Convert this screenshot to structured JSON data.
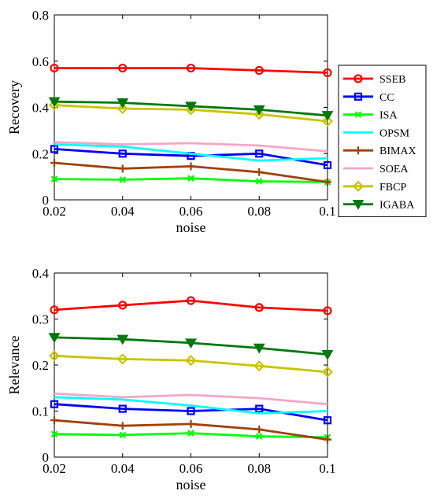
{
  "series_styles": [
    {
      "name": "SSEB",
      "color": "#ff0000",
      "marker": "circle"
    },
    {
      "name": "CC",
      "color": "#0000ff",
      "marker": "square"
    },
    {
      "name": "ISA",
      "color": "#00ff00",
      "marker": "x"
    },
    {
      "name": "OPSM",
      "color": "#00ffff",
      "marker": "none"
    },
    {
      "name": "BIMAX",
      "color": "#a0400a",
      "marker": "plus"
    },
    {
      "name": "SOEA",
      "color": "#f4a6c8",
      "marker": "none"
    },
    {
      "name": "FBCP",
      "color": "#c8c400",
      "marker": "diamond"
    },
    {
      "name": "IGABA",
      "color": "#00780a",
      "marker": "triangle-down"
    }
  ],
  "chart_data": [
    {
      "type": "line",
      "xlabel": "noise",
      "ylabel": "Recovery",
      "x": [
        0.02,
        0.04,
        0.06,
        0.08,
        0.1
      ],
      "x_tick_labels": [
        "0.02",
        "0.04",
        "0.06",
        "0.08",
        "0.1"
      ],
      "ylim": [
        0,
        0.8
      ],
      "y_ticks": [
        0,
        0.2,
        0.4,
        0.6,
        0.8
      ],
      "y_tick_labels": [
        "0",
        "0.2",
        "0.4",
        "0.6",
        "0.8"
      ],
      "legend_position": "right",
      "grid": false,
      "series": [
        {
          "name": "SSEB",
          "values": [
            0.57,
            0.57,
            0.57,
            0.56,
            0.55
          ]
        },
        {
          "name": "CC",
          "values": [
            0.22,
            0.2,
            0.19,
            0.2,
            0.15
          ]
        },
        {
          "name": "ISA",
          "values": [
            0.09,
            0.087,
            0.093,
            0.08,
            0.077
          ]
        },
        {
          "name": "OPSM",
          "values": [
            0.24,
            0.23,
            0.2,
            0.17,
            0.18
          ]
        },
        {
          "name": "BIMAX",
          "values": [
            0.16,
            0.135,
            0.145,
            0.12,
            0.077
          ]
        },
        {
          "name": "SOEA",
          "values": [
            0.25,
            0.24,
            0.245,
            0.235,
            0.21
          ]
        },
        {
          "name": "FBCP",
          "values": [
            0.41,
            0.395,
            0.39,
            0.37,
            0.34
          ]
        },
        {
          "name": "IGABA",
          "values": [
            0.425,
            0.42,
            0.405,
            0.39,
            0.365
          ]
        }
      ]
    },
    {
      "type": "line",
      "xlabel": "noise",
      "ylabel": "Relevance",
      "x": [
        0.02,
        0.04,
        0.06,
        0.08,
        0.1
      ],
      "x_tick_labels": [
        "0.02",
        "0.04",
        "0.06",
        "0.08",
        "0.1"
      ],
      "ylim": [
        0,
        0.4
      ],
      "y_ticks": [
        0,
        0.1,
        0.2,
        0.3,
        0.4
      ],
      "y_tick_labels": [
        "0",
        "0.1",
        "0.2",
        "0.3",
        "0.4"
      ],
      "grid": false,
      "series": [
        {
          "name": "SSEB",
          "values": [
            0.32,
            0.33,
            0.34,
            0.325,
            0.318
          ]
        },
        {
          "name": "CC",
          "values": [
            0.115,
            0.105,
            0.1,
            0.105,
            0.08
          ]
        },
        {
          "name": "ISA",
          "values": [
            0.05,
            0.048,
            0.052,
            0.045,
            0.043
          ]
        },
        {
          "name": "OPSM",
          "values": [
            0.13,
            0.125,
            0.112,
            0.095,
            0.1
          ]
        },
        {
          "name": "BIMAX",
          "values": [
            0.08,
            0.068,
            0.072,
            0.06,
            0.038
          ]
        },
        {
          "name": "SOEA",
          "values": [
            0.138,
            0.13,
            0.135,
            0.128,
            0.115
          ]
        },
        {
          "name": "FBCP",
          "values": [
            0.22,
            0.213,
            0.21,
            0.198,
            0.185
          ]
        },
        {
          "name": "IGABA",
          "values": [
            0.26,
            0.256,
            0.248,
            0.237,
            0.223
          ]
        }
      ]
    }
  ]
}
